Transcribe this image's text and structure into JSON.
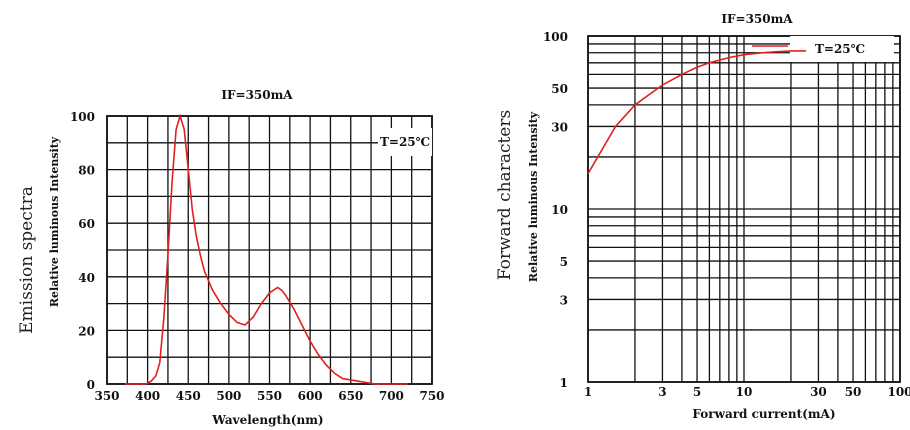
{
  "chart_data": [
    {
      "type": "line",
      "title": "IF=350mA",
      "xlabel": "Wavelength(nm)",
      "ylabel": "Emission spectra",
      "ylabel_sub": "Relative luminous Intensity",
      "annotation": "T=25℃",
      "xlim": [
        350,
        750
      ],
      "ylim": [
        0,
        100
      ],
      "x_ticks": [
        "350",
        "400",
        "450",
        "500",
        "550",
        "600",
        "650",
        "700",
        "750"
      ],
      "y_ticks": [
        "0",
        "20",
        "40",
        "60",
        "80",
        "100"
      ],
      "grid": true,
      "color": "#e02020",
      "series": [
        {
          "x": [
            372,
            390,
            398,
            404,
            410,
            415,
            420,
            425,
            430,
            435,
            440,
            445,
            450,
            455,
            460,
            465,
            470,
            480,
            490,
            500,
            510,
            520,
            530,
            540,
            550,
            560,
            565,
            570,
            580,
            590,
            600,
            610,
            620,
            630,
            640,
            660,
            680,
            700,
            720
          ],
          "y": [
            0,
            0,
            0,
            1,
            3,
            8,
            25,
            48,
            75,
            95,
            100,
            95,
            80,
            65,
            55,
            48,
            42,
            35,
            30,
            26,
            23,
            22,
            25,
            30,
            34,
            36,
            35,
            33,
            28,
            22,
            16,
            11,
            7,
            4,
            2,
            1,
            0,
            0,
            0
          ]
        }
      ]
    },
    {
      "type": "line",
      "title": "IF=350mA",
      "xlabel": "Forward current(mA)",
      "ylabel": "Forward characters",
      "ylabel_sub": "Relative luminous Intensity",
      "annotation": "T=25℃",
      "xscale": "log",
      "yscale": "log",
      "xlim": [
        1,
        100
      ],
      "ylim": [
        1,
        100
      ],
      "x_ticks": [
        "1",
        "3",
        "5",
        "10",
        "30",
        "50",
        "100"
      ],
      "y_ticks": [
        "1",
        "3",
        "5",
        "10",
        "30",
        "50",
        "100"
      ],
      "grid": true,
      "color": "#e02020",
      "series": [
        {
          "x": [
            1,
            1.5,
            2,
            3,
            4,
            5,
            6,
            8,
            10,
            13,
            16,
            20,
            25
          ],
          "y": [
            16,
            30,
            40,
            52,
            60,
            66,
            70,
            75,
            78,
            80,
            81,
            82,
            82
          ]
        }
      ]
    }
  ]
}
